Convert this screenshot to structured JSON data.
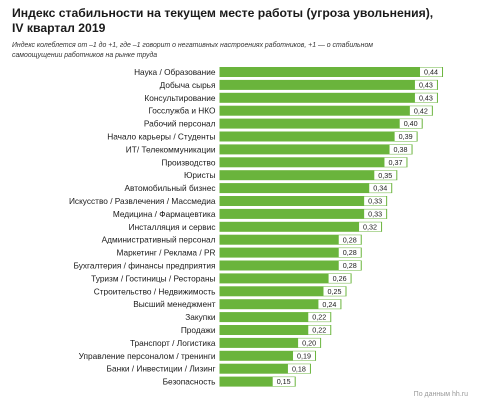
{
  "header": {
    "title": "Индекс стабильности на текущем месте работы (угроза увольнения),\nIV квартал 2019",
    "subtitle": "Индекс колеблется от –1 до +1, где –1 говорит о негативных настроениях работников, +1 — о стабильном самоощущении работников на рынке труда"
  },
  "source": "По данным hh.ru",
  "colors": {
    "bar": "#6ab43c",
    "value_box": "#ffffff"
  },
  "chart_data": {
    "type": "bar",
    "orientation": "horizontal",
    "title": "Индекс стабильности на текущем месте работы (угроза увольнения), IV квартал 2019",
    "xlim": [
      0,
      0.46
    ],
    "grid": false,
    "categories": [
      "Наука / Образование",
      "Добыча сырья",
      "Консультирование",
      "Госслужба и НКО",
      "Рабочий персонал",
      "Начало карьеры / Студенты",
      "ИТ/ Телекоммуникации",
      "Производство",
      "Юристы",
      "Автомобильный бизнес",
      "Искусство / Развлечения / Массмедиа",
      "Медицина / Фармацевтика",
      "Инсталляция и сервис",
      "Административный персонал",
      "Маркетинг / Реклама / PR",
      "Бухгалтерия / финансы предприятия",
      "Туризм / Гостиницы / Рестораны",
      "Строительство / Недвижимость",
      "Высший менеджмент",
      "Закупки",
      "Продажи",
      "Транспорт / Логистика",
      "Управление персоналом / тренинги",
      "Банки / Инвестиции / Лизинг",
      "Безопасность"
    ],
    "values": [
      0.44,
      0.43,
      0.43,
      0.42,
      0.4,
      0.39,
      0.38,
      0.37,
      0.35,
      0.34,
      0.33,
      0.33,
      0.32,
      0.28,
      0.28,
      0.28,
      0.26,
      0.25,
      0.24,
      0.22,
      0.22,
      0.2,
      0.19,
      0.18,
      0.15
    ],
    "value_labels": [
      "0,44",
      "0,43",
      "0,43",
      "0,42",
      "0,40",
      "0,39",
      "0,38",
      "0,37",
      "0,35",
      "0,34",
      "0,33",
      "0,33",
      "0,32",
      "0,28",
      "0,28",
      "0,28",
      "0,26",
      "0,25",
      "0,24",
      "0,22",
      "0,22",
      "0,20",
      "0,19",
      "0,18",
      "0,15"
    ]
  }
}
